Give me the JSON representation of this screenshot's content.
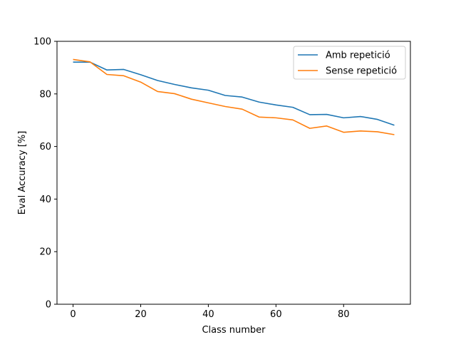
{
  "chart_data": {
    "type": "line",
    "xlabel": "Class number",
    "ylabel": "Eval Accuracy [%]",
    "xlim": [
      -4.75,
      99.75
    ],
    "ylim": [
      0,
      100
    ],
    "xticks": [
      0,
      20,
      40,
      60,
      80
    ],
    "yticks": [
      0,
      20,
      40,
      60,
      80,
      100
    ],
    "grid": false,
    "legend_position": "top-right",
    "x": [
      0,
      5,
      10,
      15,
      20,
      25,
      30,
      35,
      40,
      45,
      50,
      55,
      60,
      65,
      70,
      75,
      80,
      85,
      90,
      95
    ],
    "series": [
      {
        "name": "Amb repetició",
        "color": "#1f77b4",
        "values": [
          92.1,
          92.1,
          89.1,
          89.3,
          87.3,
          85.1,
          83.6,
          82.3,
          81.4,
          79.4,
          78.8,
          76.9,
          75.8,
          74.9,
          72.1,
          72.2,
          70.9,
          71.4,
          70.3,
          68.1
        ]
      },
      {
        "name": "Sense repetició",
        "color": "#ff7f0e",
        "values": [
          93.1,
          92.2,
          87.4,
          86.9,
          84.5,
          80.9,
          80.1,
          78.0,
          76.6,
          75.2,
          74.2,
          71.2,
          70.9,
          70.1,
          66.9,
          67.8,
          65.4,
          65.9,
          65.6,
          64.5
        ]
      }
    ]
  }
}
